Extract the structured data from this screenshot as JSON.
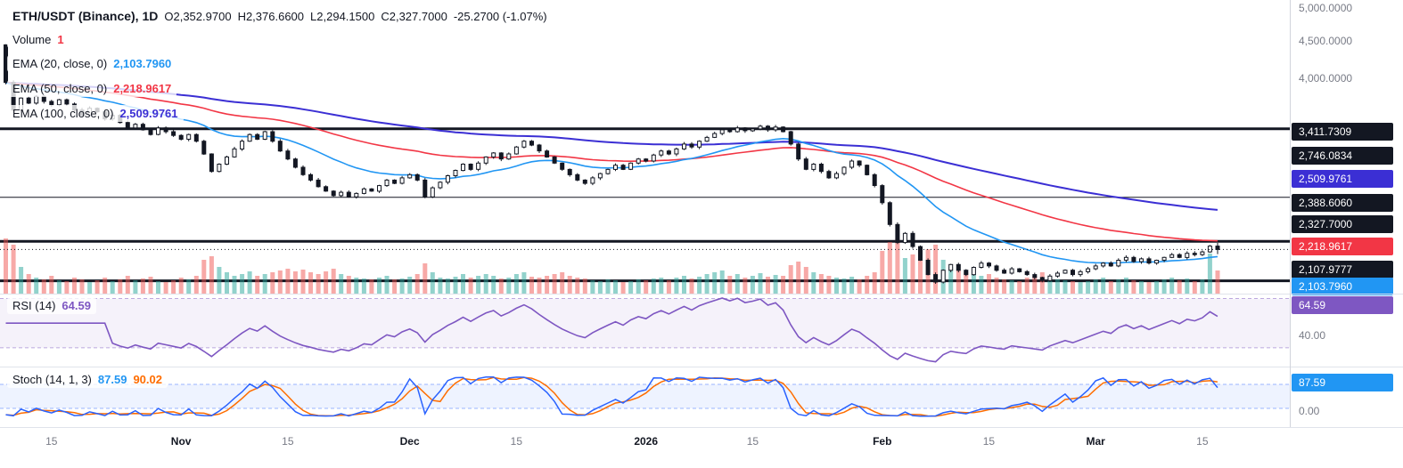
{
  "colors": {
    "background": "#ffffff",
    "text_dark": "#131722",
    "text_gray": "#787b86",
    "candle_up_fill": "#ffffff",
    "candle_down_fill": "#131722",
    "candle_border": "#131722",
    "volume_up": "rgba(38,166,154,0.5)",
    "volume_down": "rgba(239,83,80,0.5)",
    "ema20": "#2196f3",
    "ema50": "#f23645",
    "ema100": "#3b2fd4",
    "rsi": "#7e57c2",
    "rsi_band_fill": "rgba(126,87,194,0.08)",
    "rsi_band_line": "rgba(126,87,194,0.5)",
    "stoch_k": "#2962ff",
    "stoch_d": "#ff6d00",
    "stoch_band_fill": "rgba(41,98,255,0.08)",
    "stoch_band_line": "rgba(41,98,255,0.45)",
    "level_line": "#131722"
  },
  "header": {
    "symbol_title": "ETH/USDT (Binance), 1D",
    "ohlc": [
      {
        "k": "O",
        "v": "2,352.9700"
      },
      {
        "k": "H",
        "v": "2,376.6600"
      },
      {
        "k": "L",
        "v": "2,294.1500"
      },
      {
        "k": "C",
        "v": "2,327.7000"
      }
    ],
    "change": "-25.2700 (-1.07%)"
  },
  "legend": {
    "volume_label": "Volume",
    "volume_value": "1",
    "ema20_label": "EMA (20, close, 0)",
    "ema20_value": "2,103.7960",
    "ema50_label": "EMA (50, close, 0)",
    "ema50_value": "2,218.9617",
    "ema100_label": "EMA (100, close, 0)",
    "ema100_value": "2,509.9761"
  },
  "rsi_pane": {
    "label": "RSI (14)",
    "value": "64.59",
    "axis_badge": "64.59",
    "axis_label": "40.00"
  },
  "stoch_pane": {
    "label": "Stoch (14, 1, 3)",
    "k_value": "87.59",
    "d_value": "90.02",
    "axis_badge": "87.59",
    "axis_label": "0.00"
  },
  "price_axis": {
    "labels": [
      "5,000.0000",
      "4,500.0000",
      "4,000.0000"
    ],
    "badges": [
      {
        "text": "3,411.7309",
        "color": "dark"
      },
      {
        "text": "2,746.0834",
        "color": "dark"
      },
      {
        "text": "2,509.9761",
        "color": "indigo"
      },
      {
        "text": "2,388.6060",
        "color": "dark"
      },
      {
        "text": "2,327.7000",
        "color": "dark"
      },
      {
        "text": "2,218.9617",
        "color": "red"
      },
      {
        "text": "2,107.9777",
        "color": "dark"
      },
      {
        "text": "2,103.7960",
        "color": "blue"
      }
    ]
  },
  "chart_data": {
    "type": "candlestick",
    "symbol": "ETH/USDT",
    "exchange": "Binance",
    "interval": "1D",
    "last_candle": {
      "o": 2352.97,
      "h": 2376.66,
      "l": 2294.15,
      "c": 2327.7
    },
    "change": -25.27,
    "change_pct": -1.07,
    "current_price_line": 2327.7,
    "price_levels": [
      3411.7309,
      2746.0834,
      2388.606,
      2107.9777
    ],
    "indicators": {
      "ema_periods": [
        20,
        50,
        100
      ],
      "ema_values": [
        2103.796,
        2218.9617,
        2509.9761
      ],
      "rsi": {
        "period": 14,
        "value": 64.59
      },
      "stoch": {
        "params": [
          14,
          1,
          3
        ],
        "k": 87.59,
        "d": 90.02
      }
    },
    "y_axis": {
      "scale": "log",
      "visible_labels": [
        5000,
        4500,
        4000
      ],
      "rsi_visible_label": 40,
      "stoch_visible_label": 0
    },
    "x_ticks": [
      {
        "label": "15",
        "i": 6,
        "major": false
      },
      {
        "label": "Nov",
        "i": 23,
        "major": true
      },
      {
        "label": "15",
        "i": 37,
        "major": false
      },
      {
        "label": "Dec",
        "i": 53,
        "major": true
      },
      {
        "label": "15",
        "i": 67,
        "major": false
      },
      {
        "label": "2026",
        "i": 84,
        "major": true
      },
      {
        "label": "15",
        "i": 98,
        "major": false
      },
      {
        "label": "Feb",
        "i": 115,
        "major": true
      },
      {
        "label": "15",
        "i": 129,
        "major": false
      },
      {
        "label": "Mar",
        "i": 143,
        "major": true
      },
      {
        "label": "15",
        "i": 157,
        "major": false
      }
    ],
    "first_open": 4450,
    "closes": [
      3950,
      3620,
      3760,
      3700,
      3780,
      3720,
      3680,
      3740,
      3690,
      3620,
      3560,
      3640,
      3600,
      3520,
      3560,
      3480,
      3420,
      3460,
      3400,
      3350,
      3420,
      3380,
      3340,
      3300,
      3350,
      3280,
      3150,
      2980,
      3050,
      3120,
      3200,
      3280,
      3350,
      3300,
      3380,
      3280,
      3180,
      3100,
      3020,
      2950,
      2900,
      2840,
      2800,
      2760,
      2790,
      2750,
      2780,
      2820,
      2800,
      2850,
      2900,
      2870,
      2920,
      2950,
      2900,
      2750,
      2830,
      2880,
      2940,
      2990,
      3050,
      3000,
      3060,
      3120,
      3160,
      3100,
      3150,
      3220,
      3280,
      3240,
      3180,
      3120,
      3060,
      3000,
      2950,
      2900,
      2870,
      2920,
      2960,
      3000,
      3040,
      3000,
      3060,
      3100,
      3080,
      3140,
      3180,
      3150,
      3200,
      3250,
      3220,
      3280,
      3320,
      3360,
      3400,
      3380,
      3420,
      3390,
      3410,
      3440,
      3400,
      3430,
      3380,
      3250,
      3100,
      3000,
      3050,
      2980,
      2920,
      2960,
      3020,
      3080,
      3040,
      2950,
      2850,
      2700,
      2520,
      2380,
      2450,
      2350,
      2250,
      2150,
      2100,
      2180,
      2220,
      2180,
      2150,
      2200,
      2230,
      2210,
      2180,
      2160,
      2190,
      2170,
      2150,
      2130,
      2110,
      2140,
      2160,
      2180,
      2150,
      2170,
      2190,
      2210,
      2230,
      2210,
      2250,
      2270,
      2240,
      2260,
      2230,
      2250,
      2270,
      2290,
      2270,
      2300,
      2290,
      2310,
      2353,
      2327.7
    ],
    "volumes": [
      62,
      55,
      30,
      22,
      18,
      16,
      20,
      15,
      14,
      18,
      16,
      13,
      15,
      18,
      14,
      16,
      20,
      15,
      17,
      19,
      14,
      13,
      15,
      18,
      16,
      20,
      38,
      42,
      30,
      24,
      20,
      22,
      25,
      20,
      22,
      24,
      26,
      28,
      25,
      27,
      24,
      22,
      25,
      28,
      22,
      20,
      18,
      17,
      16,
      18,
      20,
      16,
      17,
      19,
      22,
      34,
      24,
      18,
      17,
      19,
      22,
      18,
      20,
      22,
      20,
      17,
      18,
      22,
      24,
      19,
      18,
      20,
      22,
      24,
      20,
      18,
      17,
      15,
      14,
      16,
      15,
      13,
      14,
      16,
      15,
      17,
      18,
      15,
      18,
      20,
      17,
      19,
      22,
      24,
      26,
      20,
      22,
      18,
      20,
      23,
      19,
      21,
      20,
      32,
      36,
      30,
      24,
      22,
      20,
      18,
      17,
      19,
      16,
      20,
      24,
      48,
      58,
      62,
      40,
      44,
      46,
      50,
      55,
      38,
      30,
      26,
      24,
      22,
      20,
      22,
      18,
      16,
      15,
      14,
      18,
      20,
      24,
      18,
      16,
      15,
      14,
      13,
      14,
      16,
      18,
      14,
      16,
      18,
      15,
      14,
      13,
      14,
      16,
      18,
      15,
      17,
      14,
      16,
      45,
      26
    ]
  }
}
